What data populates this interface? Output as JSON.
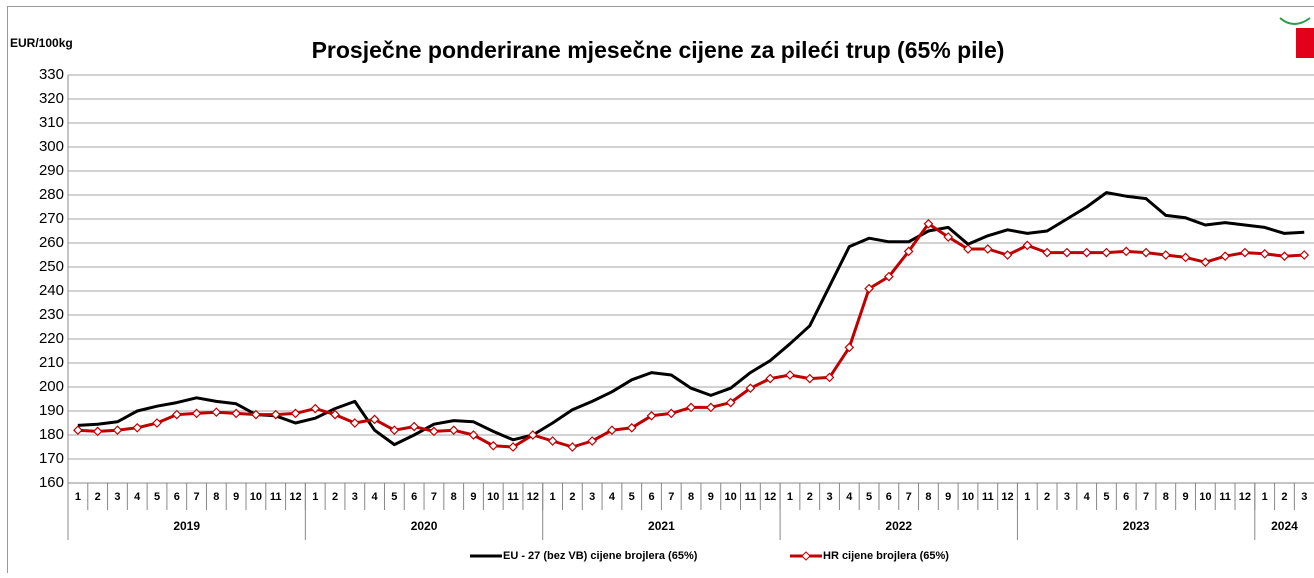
{
  "chart_data": {
    "type": "line",
    "title": "Prosječne ponderirane mjesečne cijene za pileći trup (65% pile)",
    "y_label": "EUR/100kg",
    "categories": [
      "1",
      "2",
      "3",
      "4",
      "5",
      "6",
      "7",
      "8",
      "9",
      "10",
      "11",
      "12",
      "1",
      "2",
      "3",
      "4",
      "5",
      "6",
      "7",
      "8",
      "9",
      "10",
      "11",
      "12",
      "1",
      "2",
      "3",
      "4",
      "5",
      "6",
      "7",
      "8",
      "9",
      "10",
      "11",
      "12",
      "1",
      "2",
      "3",
      "4",
      "5",
      "6",
      "7",
      "8",
      "9",
      "10",
      "11",
      "12",
      "1",
      "2",
      "3",
      "4",
      "5",
      "6",
      "7",
      "8",
      "9",
      "10",
      "11",
      "12",
      "1",
      "2",
      "3"
    ],
    "year_labels": [
      "2019",
      "2020",
      "2021",
      "2022",
      "2023",
      "2024"
    ],
    "ylim": [
      160,
      330
    ],
    "yticks": [
      160,
      170,
      180,
      190,
      200,
      210,
      220,
      230,
      240,
      250,
      260,
      270,
      280,
      290,
      300,
      310,
      320,
      330
    ],
    "grid": true,
    "legend": "bottom",
    "series": [
      {
        "name": "EU - 27 (bez VB) cijene brojlera (65%)",
        "color": "#000000",
        "marker": "none",
        "values": [
          184,
          184.5,
          185.5,
          190,
          192,
          193.5,
          195.5,
          194,
          193,
          188.5,
          188,
          185,
          187,
          191,
          194,
          182,
          176,
          180,
          184.5,
          186,
          185.5,
          181.5,
          178,
          180,
          185,
          190.5,
          194,
          198,
          203,
          206,
          205,
          199.5,
          196.5,
          199.5,
          206,
          211,
          218,
          225.5,
          242,
          258.5,
          262,
          260.5,
          260.5,
          265,
          266.5,
          259.5,
          263,
          265.5,
          264,
          265,
          270,
          275,
          281,
          279.5,
          278.5,
          271.5,
          270.5,
          267.5,
          268.5,
          267.5,
          266.5,
          264,
          264.5
        ]
      },
      {
        "name": "HR cijene brojlera (65%)",
        "color": "#c00000",
        "marker": "diamond",
        "values": [
          182,
          181.5,
          182,
          183,
          185,
          188.5,
          189,
          189.5,
          189,
          188.5,
          188.5,
          189,
          191,
          188.5,
          185,
          186.5,
          182,
          183.5,
          181.5,
          182,
          180,
          175.5,
          175,
          180,
          177.5,
          175,
          177.5,
          182,
          183,
          188,
          189,
          191.5,
          191.5,
          193.5,
          199.5,
          203.5,
          205,
          203.5,
          204,
          216.5,
          241,
          246,
          256.5,
          268,
          262.5,
          257.5,
          257.5,
          255,
          259,
          256,
          256,
          256,
          256,
          256.5,
          256,
          255,
          254,
          252,
          254.5,
          256,
          255.5,
          254.5,
          255
        ]
      }
    ]
  }
}
